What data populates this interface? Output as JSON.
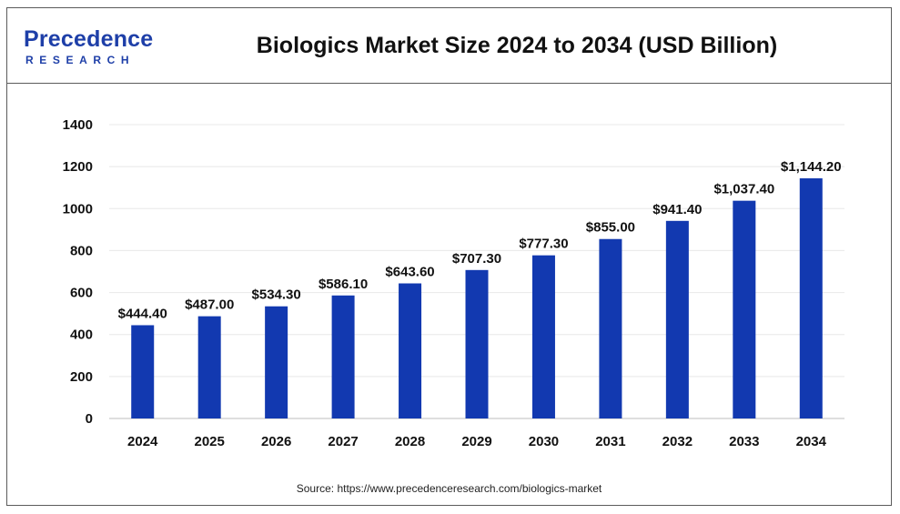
{
  "logo": {
    "top": "Precedence",
    "bottom": "RESEARCH"
  },
  "title": "Biologics Market Size 2024 to 2034 (USD Billion)",
  "source_prefix": "Source:",
  "source_url": "https://www.precedenceresearch.com/biologics-market",
  "colors": {
    "bar": "#1239b0",
    "brand": "#1e3fa8",
    "grid": "#e8e8e8"
  },
  "chart_data": {
    "type": "bar",
    "title": "Biologics Market Size 2024 to 2034 (USD Billion)",
    "categories": [
      "2024",
      "2025",
      "2026",
      "2027",
      "2028",
      "2029",
      "2030",
      "2031",
      "2032",
      "2033",
      "2034"
    ],
    "values": [
      444.4,
      487.0,
      534.3,
      586.1,
      643.6,
      707.3,
      777.3,
      855.0,
      941.4,
      1037.4,
      1144.2
    ],
    "data_labels": [
      "$444.40",
      "$487.00",
      "$534.30",
      "$586.10",
      "$643.60",
      "$707.30",
      "$777.30",
      "$855.00",
      "$941.40",
      "$1,037.40",
      "$1,144.20"
    ],
    "yticks": [
      "0",
      "200",
      "400",
      "600",
      "800",
      "1000",
      "1200",
      "1400"
    ],
    "ylim": [
      0,
      1400
    ],
    "xlabel": "",
    "ylabel": "",
    "grid": true,
    "legend": "none"
  }
}
